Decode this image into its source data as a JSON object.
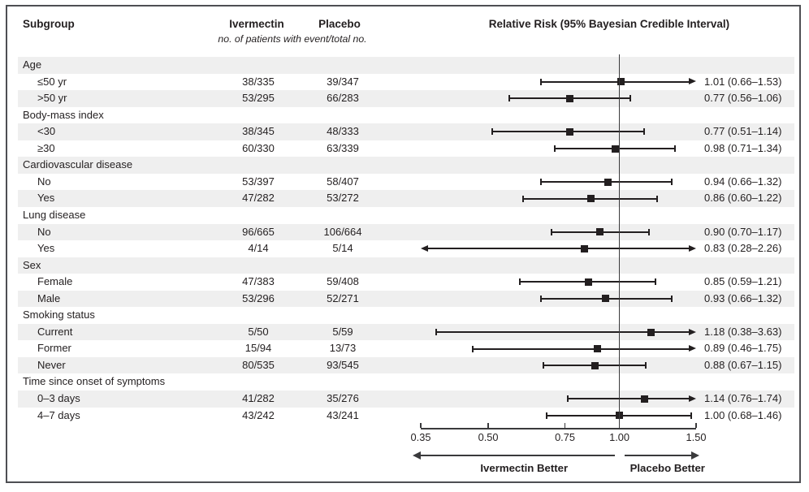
{
  "colors": {
    "ink": "#231f20",
    "stripe": "#efefef",
    "border": "#4e4f53"
  },
  "header": {
    "subgroup_label": "Subgroup",
    "ivermectin_label": "Ivermectin",
    "placebo_label": "Placebo",
    "events_note": "no. of patients with event/total no.",
    "plot_title": "Relative Risk (95% Bayesian Credible Interval)"
  },
  "chart_data": {
    "type": "forest",
    "x_scale": "log",
    "axis_range": [
      0.35,
      1.5
    ],
    "axis_ticks": [
      "0.35",
      "0.50",
      "0.75",
      "1.00",
      "1.50"
    ],
    "reference_value": 1.0,
    "direction_labels": {
      "left": "Ivermectin Better",
      "right": "Placebo Better"
    },
    "columns": {
      "group1": "Ivermectin",
      "group2": "Placebo"
    },
    "rows": [
      {
        "type": "group",
        "label": "Age"
      },
      {
        "type": "item",
        "label": "≤50 yr",
        "ivermectin": "38/335",
        "placebo": "39/347",
        "rr": 1.01,
        "lo": 0.66,
        "hi": 1.53,
        "display": "1.01 (0.66–1.53)"
      },
      {
        "type": "item",
        "label": ">50 yr",
        "ivermectin": "53/295",
        "placebo": "66/283",
        "rr": 0.77,
        "lo": 0.56,
        "hi": 1.06,
        "display": "0.77 (0.56–1.06)"
      },
      {
        "type": "group",
        "label": "Body-mass index"
      },
      {
        "type": "item",
        "label": "<30",
        "ivermectin": "38/345",
        "placebo": "48/333",
        "rr": 0.77,
        "lo": 0.51,
        "hi": 1.14,
        "display": "0.77 (0.51–1.14)"
      },
      {
        "type": "item",
        "label": "≥30",
        "ivermectin": "60/330",
        "placebo": "63/339",
        "rr": 0.98,
        "lo": 0.71,
        "hi": 1.34,
        "display": "0.98 (0.71–1.34)"
      },
      {
        "type": "group",
        "label": "Cardiovascular disease"
      },
      {
        "type": "item",
        "label": "No",
        "ivermectin": "53/397",
        "placebo": "58/407",
        "rr": 0.94,
        "lo": 0.66,
        "hi": 1.32,
        "display": "0.94 (0.66–1.32)"
      },
      {
        "type": "item",
        "label": "Yes",
        "ivermectin": "47/282",
        "placebo": "53/272",
        "rr": 0.86,
        "lo": 0.6,
        "hi": 1.22,
        "display": "0.86 (0.60–1.22)"
      },
      {
        "type": "group",
        "label": "Lung disease"
      },
      {
        "type": "item",
        "label": "No",
        "ivermectin": "96/665",
        "placebo": "106/664",
        "rr": 0.9,
        "lo": 0.7,
        "hi": 1.17,
        "display": "0.90 (0.70–1.17)"
      },
      {
        "type": "item",
        "label": "Yes",
        "ivermectin": "4/14",
        "placebo": "5/14",
        "rr": 0.83,
        "lo": 0.28,
        "hi": 2.26,
        "display": "0.83 (0.28–2.26)"
      },
      {
        "type": "group",
        "label": "Sex"
      },
      {
        "type": "item",
        "label": "Female",
        "ivermectin": "47/383",
        "placebo": "59/408",
        "rr": 0.85,
        "lo": 0.59,
        "hi": 1.21,
        "display": "0.85 (0.59–1.21)"
      },
      {
        "type": "item",
        "label": "Male",
        "ivermectin": "53/296",
        "placebo": "52/271",
        "rr": 0.93,
        "lo": 0.66,
        "hi": 1.32,
        "display": "0.93 (0.66–1.32)"
      },
      {
        "type": "group",
        "label": "Smoking status"
      },
      {
        "type": "item",
        "label": "Current",
        "ivermectin": "5/50",
        "placebo": "5/59",
        "rr": 1.18,
        "lo": 0.38,
        "hi": 3.63,
        "display": "1.18 (0.38–3.63)"
      },
      {
        "type": "item",
        "label": "Former",
        "ivermectin": "15/94",
        "placebo": "13/73",
        "rr": 0.89,
        "lo": 0.46,
        "hi": 1.75,
        "display": "0.89 (0.46–1.75)"
      },
      {
        "type": "item",
        "label": "Never",
        "ivermectin": "80/535",
        "placebo": "93/545",
        "rr": 0.88,
        "lo": 0.67,
        "hi": 1.15,
        "display": "0.88 (0.67–1.15)"
      },
      {
        "type": "group",
        "label": "Time since onset of symptoms"
      },
      {
        "type": "item",
        "label": "0–3 days",
        "ivermectin": "41/282",
        "placebo": "35/276",
        "rr": 1.14,
        "lo": 0.76,
        "hi": 1.74,
        "display": "1.14 (0.76–1.74)"
      },
      {
        "type": "item",
        "label": "4–7 days",
        "ivermectin": "43/242",
        "placebo": "43/241",
        "rr": 1.0,
        "lo": 0.68,
        "hi": 1.46,
        "display": "1.00 (0.68–1.46)"
      }
    ]
  }
}
